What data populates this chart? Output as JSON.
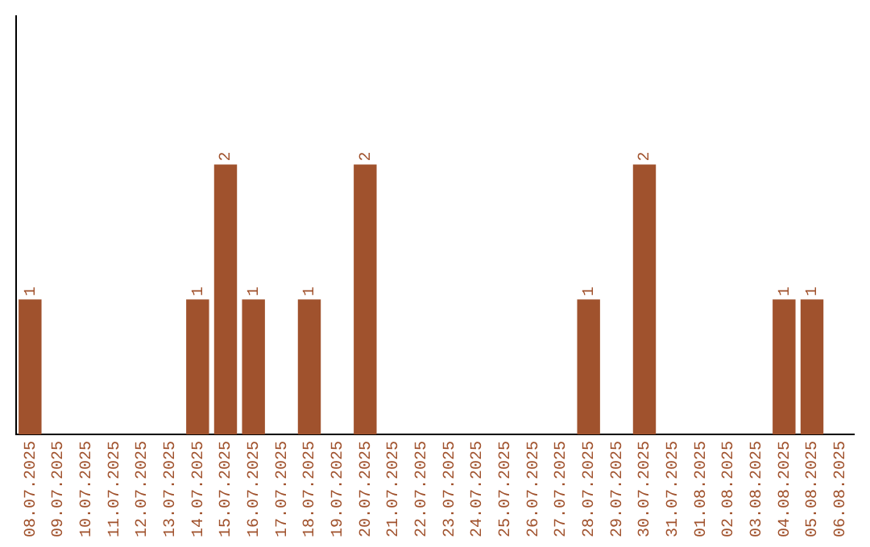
{
  "chart_data": {
    "type": "bar",
    "categories": [
      "08.07.2025",
      "09.07.2025",
      "10.07.2025",
      "11.07.2025",
      "12.07.2025",
      "13.07.2025",
      "14.07.2025",
      "15.07.2025",
      "16.07.2025",
      "17.07.2025",
      "18.07.2025",
      "19.07.2025",
      "20.07.2025",
      "21.07.2025",
      "22.07.2025",
      "23.07.2025",
      "24.07.2025",
      "25.07.2025",
      "26.07.2025",
      "27.07.2025",
      "28.07.2025",
      "29.07.2025",
      "30.07.2025",
      "31.07.2025",
      "01.08.2025",
      "02.08.2025",
      "03.08.2025",
      "04.08.2025",
      "05.08.2025",
      "06.08.2025"
    ],
    "values": [
      1,
      0,
      0,
      0,
      0,
      0,
      1,
      2,
      1,
      0,
      1,
      0,
      2,
      0,
      0,
      0,
      0,
      0,
      0,
      0,
      1,
      0,
      2,
      0,
      0,
      0,
      0,
      1,
      1,
      0
    ],
    "value_labels": [
      "1",
      null,
      null,
      null,
      null,
      null,
      "1",
      "2",
      "1",
      null,
      "1",
      null,
      "2",
      null,
      null,
      null,
      null,
      null,
      null,
      null,
      "1",
      null,
      "2",
      null,
      null,
      null,
      null,
      "1",
      "1",
      null
    ],
    "color": "#a0522d",
    "ylim": [
      0,
      3.1
    ],
    "tick_labels": "x",
    "grid": false,
    "legend": false
  }
}
